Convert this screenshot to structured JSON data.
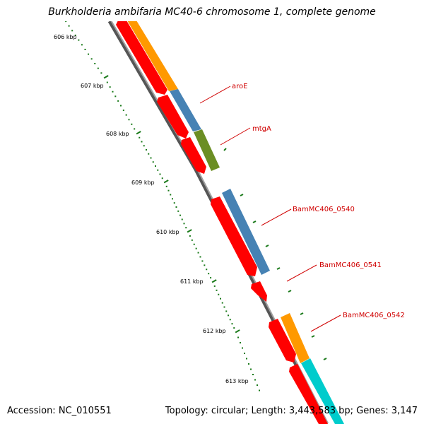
{
  "header": {
    "title": "Burkholderia ambifaria MC40-6 chromosome 1, complete genome"
  },
  "footer": {
    "accession": "Accession: NC_010551",
    "summary": "Topology: circular; Length: 3,443,583 bp; Genes: 3,147"
  },
  "colors": {
    "backbone": "#7a7a7a",
    "tick": "#1a7a1a",
    "label": "#d00000",
    "red_gene": "#ff0000",
    "orange_gene": "#ff9900",
    "steelblue_gene": "#4682b4",
    "olive_gene": "#6b8e23",
    "cyan_gene": "#00cccc"
  },
  "scale": {
    "labels": [
      "606 kbp",
      "607 kbp",
      "608 kbp",
      "609 kbp",
      "610 kbp",
      "611 kbp",
      "612 kbp",
      "613 kbp"
    ]
  },
  "genes": {
    "labels": [
      "aroE",
      "mtgA",
      "BamMC406_0540",
      "BamMC406_0541",
      "BamMC406_0542"
    ]
  }
}
